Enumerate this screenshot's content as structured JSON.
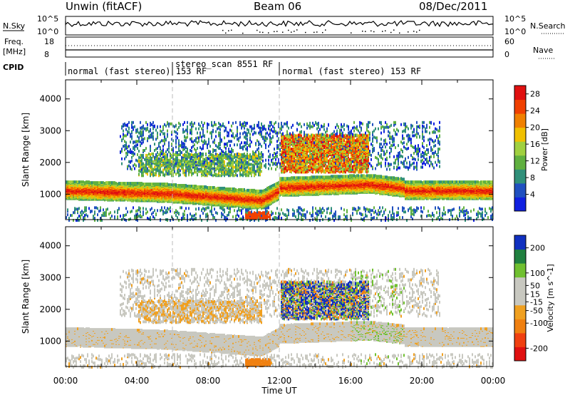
{
  "header": {
    "radar": "Unwin (fitACF)",
    "beam": "Beam 06",
    "date": "08/Dec/2011"
  },
  "top_panels": {
    "nsky_label": "N.Sky",
    "nsearch_label": "N.Search",
    "nsky_ticks": [
      "10^5",
      "10^0"
    ],
    "freq_label": "Freq.",
    "freq_unit": "[MHz]",
    "freq_ticks": [
      "18",
      "8"
    ],
    "nave_label": "Nave",
    "nave_ticks": [
      "60",
      "0"
    ],
    "cpid_label": "CPID"
  },
  "cpid_segments": [
    {
      "start_hour": 0,
      "end_hour": 6,
      "label": "normal (fast stereo) 153 RF"
    },
    {
      "start_hour": 6,
      "end_hour": 12,
      "label": "stereo_scan 8551 RF"
    },
    {
      "start_hour": 12,
      "end_hour": 24,
      "label": "normal (fast stereo) 153 RF"
    }
  ],
  "colors": {
    "power_scale": [
      "#1020e0",
      "#2050c0",
      "#30907a",
      "#60b040",
      "#a0d040",
      "#f0c000",
      "#f08000",
      "#f04000",
      "#e01010"
    ],
    "velocity_scale": [
      "#e01010",
      "#f04010",
      "#f08010",
      "#f0a020",
      "#c8c8c0",
      "#c8c8c0",
      "#70c030",
      "#208040",
      "#1030c0"
    ],
    "ground_scatter": "#c8c8c0"
  },
  "chart_data": [
    {
      "type": "heatmap",
      "title": "Power",
      "x_label": "Time UT",
      "y_label": "Slant Range [km]",
      "x_range_hours": [
        0,
        24
      ],
      "y_range_km": [
        200,
        4600
      ],
      "x_tick_labels": [
        "00:00",
        "04:00",
        "08:00",
        "12:00",
        "16:00",
        "20:00",
        "00:00"
      ],
      "y_ticks": [
        1000,
        2000,
        3000,
        4000
      ],
      "colorbar_label": "Power [dB]",
      "colorbar_ticks": [
        4,
        8,
        12,
        16,
        20,
        24,
        28
      ],
      "colorbar_range": [
        0,
        30
      ],
      "features": [
        {
          "from_hour": 0,
          "to_hour": 24,
          "center_range_km": 1150,
          "note": "main echo band"
        },
        {
          "from_hour": 12,
          "to_hour": 17,
          "center_range_km": 2100,
          "note": "strong echoes"
        }
      ]
    },
    {
      "type": "heatmap",
      "title": "Velocity",
      "x_label": "Time UT",
      "y_label": "Slant Range [km]",
      "x_range_hours": [
        0,
        24
      ],
      "y_range_km": [
        200,
        4600
      ],
      "x_tick_labels": [
        "00:00",
        "04:00",
        "08:00",
        "12:00",
        "16:00",
        "20:00",
        "00:00"
      ],
      "y_ticks": [
        1000,
        2000,
        3000,
        4000
      ],
      "colorbar_label": "Velocity [m s^-1]",
      "colorbar_ticks": [
        -200,
        -100,
        -50,
        -15,
        15,
        50,
        100,
        200
      ],
      "colorbar_range": [
        -250,
        250
      ]
    }
  ]
}
